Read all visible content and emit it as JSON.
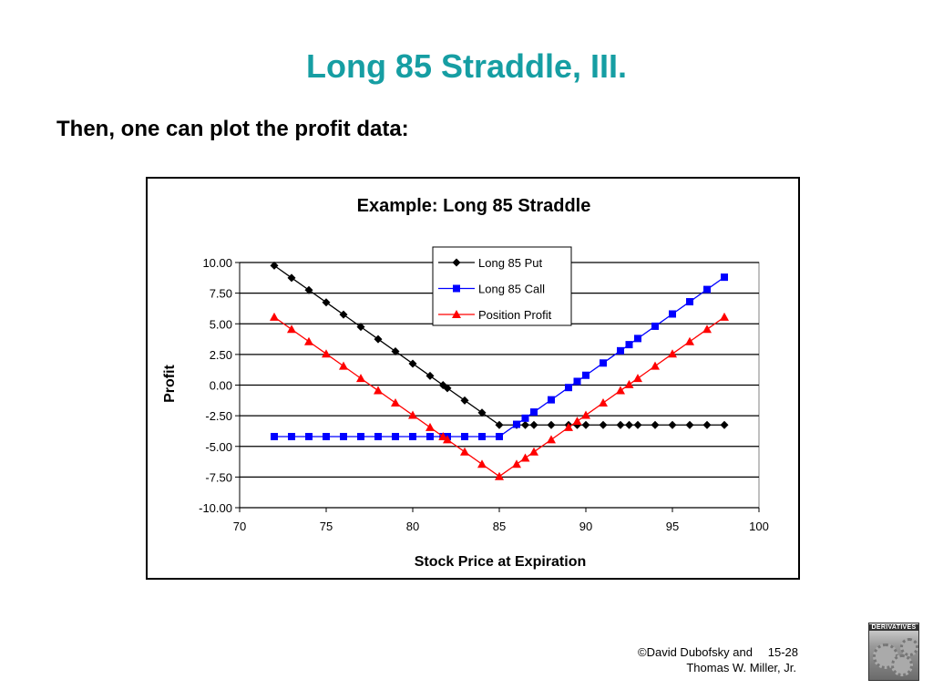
{
  "slide": {
    "title": "Long 85 Straddle, III.",
    "subtitle": "Then, one can plot the profit data:"
  },
  "footer": {
    "credit_line1": "©David Dubofsky and",
    "page_number": "15-28",
    "credit_line2": "Thomas W. Miller, Jr.",
    "book_cover_title": "DERIVATIVES"
  },
  "colors": {
    "title": "#169ea3",
    "put": "#000000",
    "call": "#0000ff",
    "position": "#ff0000"
  },
  "chart_data": {
    "type": "line",
    "title": "Example: Long 85 Straddle",
    "xlabel": "Stock Price at Expiration",
    "ylabel": "Profit",
    "xlim": [
      70,
      100
    ],
    "ylim": [
      -10,
      10
    ],
    "xticks": [
      "70",
      "75",
      "80",
      "85",
      "90",
      "95",
      "100"
    ],
    "yticks": [
      "10.00",
      "7.50",
      "5.00",
      "2.50",
      "0.00",
      "-2.50",
      "-5.00",
      "-7.50",
      "-10.00"
    ],
    "grid": "horizontal",
    "legend_position": "top-center",
    "x": [
      72,
      73,
      74,
      75,
      76,
      77,
      78,
      79,
      80,
      81,
      81.75,
      82,
      83,
      84,
      85,
      86,
      86.5,
      87,
      88,
      89,
      89.5,
      90,
      91,
      92,
      92.5,
      93,
      94,
      95,
      96,
      97,
      98
    ],
    "series": [
      {
        "name": "Long 85 Put",
        "marker": "diamond",
        "color": "#000000",
        "values": [
          9.75,
          8.75,
          7.75,
          6.75,
          5.75,
          4.75,
          3.75,
          2.75,
          1.75,
          0.75,
          0,
          -0.25,
          -1.25,
          -2.25,
          -3.25,
          -3.25,
          -3.25,
          -3.25,
          -3.25,
          -3.25,
          -3.25,
          -3.25,
          -3.25,
          -3.25,
          -3.25,
          -3.25,
          -3.25,
          -3.25,
          -3.25,
          -3.25,
          -3.25
        ]
      },
      {
        "name": "Long 85 Call",
        "marker": "square",
        "color": "#0000ff",
        "values": [
          -4.2,
          -4.2,
          -4.2,
          -4.2,
          -4.2,
          -4.2,
          -4.2,
          -4.2,
          -4.2,
          -4.2,
          -4.2,
          -4.2,
          -4.2,
          -4.2,
          -4.2,
          -3.2,
          -2.7,
          -2.2,
          -1.2,
          -0.2,
          0.3,
          0.8,
          1.8,
          2.8,
          3.3,
          3.8,
          4.8,
          5.8,
          6.8,
          7.8,
          8.8
        ]
      },
      {
        "name": "Position Profit",
        "marker": "triangle",
        "color": "#ff0000",
        "values": [
          5.55,
          4.55,
          3.55,
          2.55,
          1.55,
          0.55,
          -0.45,
          -1.45,
          -2.45,
          -3.45,
          -4.2,
          -4.45,
          -5.45,
          -6.45,
          -7.45,
          -6.45,
          -5.95,
          -5.45,
          -4.45,
          -3.45,
          -2.95,
          -2.45,
          -1.45,
          -0.45,
          0.05,
          0.55,
          1.55,
          2.55,
          3.55,
          4.55,
          5.55
        ]
      }
    ]
  }
}
